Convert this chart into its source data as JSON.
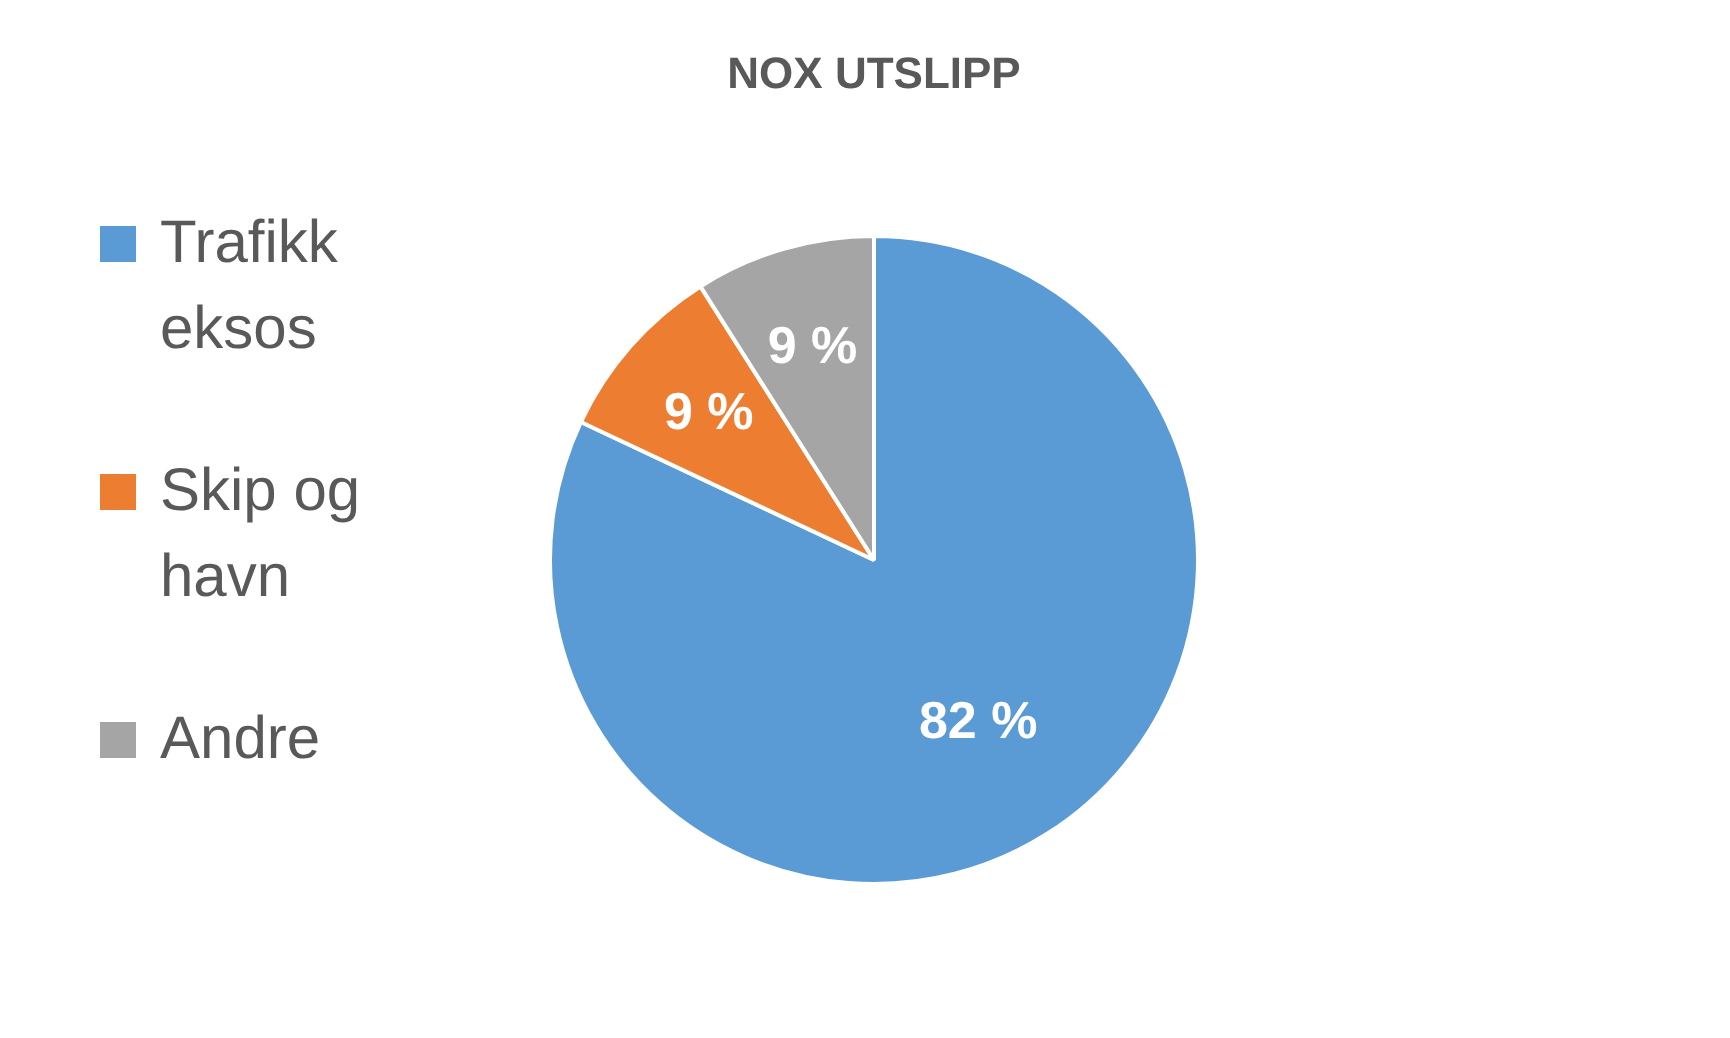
{
  "chart_data": {
    "type": "pie",
    "title": "NOX UTSLIPP",
    "categories": [
      "Trafikk eksos",
      "Skip og havn",
      "Andre"
    ],
    "values": [
      82,
      9,
      9
    ],
    "colors": [
      "#5b9bd5",
      "#ed7d31",
      "#a5a5a5"
    ],
    "value_labels": [
      "82 %",
      "9 %",
      "9 %"
    ],
    "legend": "left"
  }
}
